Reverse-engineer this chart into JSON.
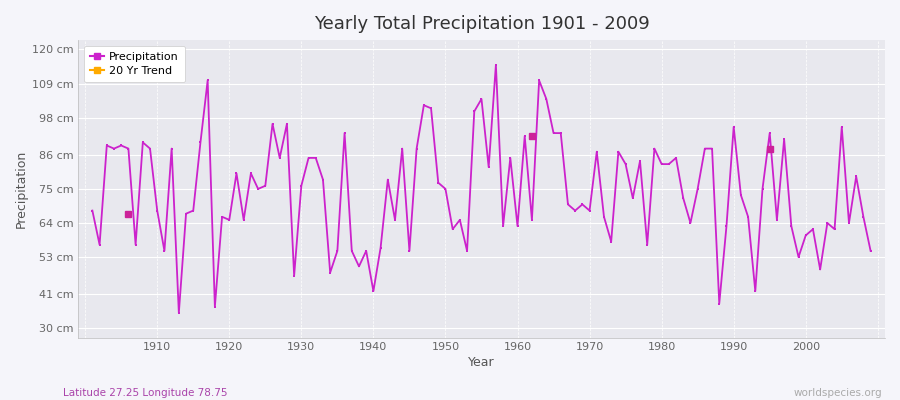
{
  "title": "Yearly Total Precipitation 1901 - 2009",
  "xlabel": "Year",
  "ylabel": "Precipitation",
  "subtitle": "Latitude 27.25 Longitude 78.75",
  "watermark": "worldspecies.org",
  "years": [
    1901,
    1902,
    1903,
    1904,
    1905,
    1906,
    1907,
    1908,
    1909,
    1910,
    1911,
    1912,
    1913,
    1914,
    1915,
    1916,
    1917,
    1918,
    1919,
    1920,
    1921,
    1922,
    1923,
    1924,
    1925,
    1926,
    1927,
    1928,
    1929,
    1930,
    1931,
    1932,
    1933,
    1934,
    1935,
    1936,
    1937,
    1938,
    1939,
    1940,
    1941,
    1942,
    1943,
    1944,
    1945,
    1946,
    1947,
    1948,
    1949,
    1950,
    1951,
    1952,
    1953,
    1954,
    1955,
    1956,
    1957,
    1958,
    1959,
    1960,
    1961,
    1962,
    1963,
    1964,
    1965,
    1966,
    1967,
    1968,
    1969,
    1970,
    1971,
    1972,
    1973,
    1974,
    1975,
    1976,
    1977,
    1978,
    1979,
    1980,
    1981,
    1982,
    1983,
    1984,
    1985,
    1986,
    1987,
    1988,
    1989,
    1990,
    1991,
    1992,
    1993,
    1994,
    1995,
    1996,
    1997,
    1998,
    1999,
    2000,
    2001,
    2002,
    2003,
    2004,
    2005,
    2006,
    2007,
    2008,
    2009
  ],
  "precipitation": [
    68,
    57,
    89,
    88,
    89,
    88,
    57,
    90,
    88,
    68,
    55,
    88,
    35,
    67,
    68,
    90,
    110,
    37,
    66,
    65,
    80,
    65,
    80,
    75,
    76,
    96,
    85,
    96,
    47,
    76,
    85,
    85,
    78,
    48,
    55,
    93,
    55,
    50,
    55,
    42,
    56,
    78,
    65,
    88,
    55,
    88,
    102,
    101,
    77,
    75,
    62,
    65,
    55,
    100,
    104,
    82,
    115,
    63,
    85,
    63,
    92,
    65,
    110,
    104,
    93,
    93,
    70,
    68,
    70,
    68,
    87,
    66,
    58,
    87,
    83,
    72,
    84,
    57,
    88,
    83,
    83,
    85,
    72,
    64,
    75,
    88,
    88,
    38,
    63,
    95,
    73,
    66,
    42,
    75,
    93,
    65,
    91,
    63,
    53,
    60,
    62,
    49,
    64,
    62,
    95,
    64,
    79,
    66,
    55
  ],
  "trend_dot_years": [
    1906,
    1962,
    1995
  ],
  "trend_dot_values": [
    67,
    92,
    88
  ],
  "line_color": "#cc22cc",
  "trend_dot_color": "#cc2299",
  "bg_color": "#f5f5fa",
  "plot_bg": "#e8e8ee",
  "grid_major_color": "#ffffff",
  "grid_minor_color": "#d8d8e0",
  "ytick_labels": [
    "30 cm",
    "41 cm",
    "53 cm",
    "64 cm",
    "75 cm",
    "86 cm",
    "98 cm",
    "109 cm",
    "120 cm"
  ],
  "ytick_values": [
    30,
    41,
    53,
    64,
    75,
    86,
    98,
    109,
    120
  ],
  "ylim": [
    27,
    123
  ],
  "xlim": [
    1899,
    2011
  ]
}
